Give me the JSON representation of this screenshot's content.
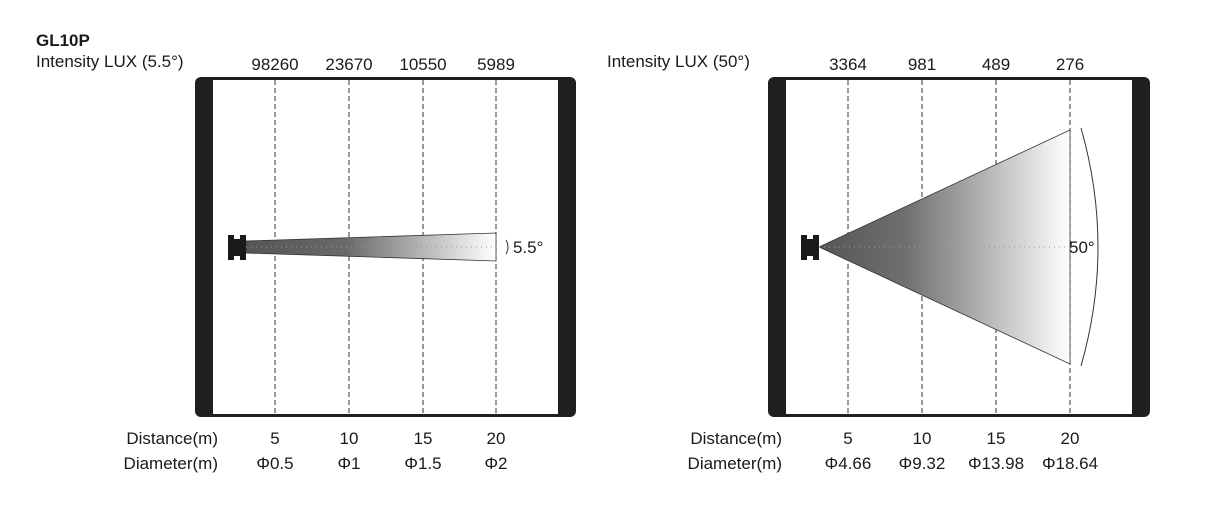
{
  "model": "GL10P",
  "panels": [
    {
      "intensity_label": "Intensity LUX (5.5°)",
      "lux": [
        "98260",
        "23670",
        "10550",
        "5989"
      ],
      "beam_angle_label": "5.5°",
      "beam_angle_deg": 5.5,
      "distance_label": "Distance(m)",
      "diameter_label": "Diameter(m)",
      "distances": [
        "5",
        "10",
        "15",
        "20"
      ],
      "diameters": [
        "Φ0.5",
        "Φ1",
        "Φ1.5",
        "Φ2"
      ]
    },
    {
      "intensity_label": "Intensity LUX (50°)",
      "lux": [
        "3364",
        "981",
        "489",
        "276"
      ],
      "beam_angle_label": "50°",
      "beam_angle_deg": 50,
      "distance_label": "Distance(m)",
      "diameter_label": "Diameter(m)",
      "distances": [
        "5",
        "10",
        "15",
        "20"
      ],
      "diameters": [
        "Φ4.66",
        "Φ9.32",
        "Φ13.98",
        "Φ18.64"
      ]
    }
  ],
  "colors": {
    "frame": "#1f1f1f",
    "beam_dark": "#555555",
    "beam_light": "#ffffff"
  }
}
